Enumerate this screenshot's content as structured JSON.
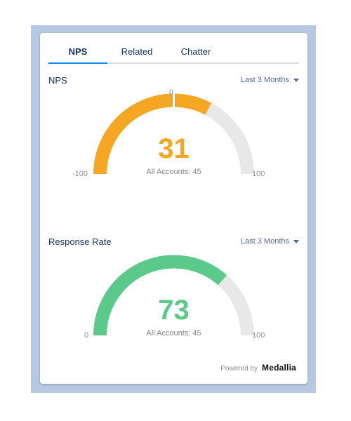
{
  "tabs": [
    {
      "label": "NPS",
      "active": true
    },
    {
      "label": "Related",
      "active": false
    },
    {
      "label": "Chatter",
      "active": false
    }
  ],
  "nps": {
    "title": "NPS",
    "period": "Last 3 Months",
    "value": "31",
    "subtitle": "All Accounts: 45",
    "min_label": "-100",
    "max_label": "100",
    "center_label": "0",
    "min": -100,
    "max": 100,
    "score": 31,
    "benchmark": 0,
    "color": "#f5a623",
    "track_color": "#e8e8e8"
  },
  "response_rate": {
    "title": "Response Rate",
    "period": "Last 3 Months",
    "value": "73",
    "subtitle": "All Accounts: 45",
    "min_label": "0",
    "max_label": "100",
    "min": 0,
    "max": 100,
    "score": 73,
    "color": "#5ac98a",
    "track_color": "#e8e8e8"
  },
  "footer": {
    "powered_by": "Powered by",
    "brand": "Medallia"
  }
}
